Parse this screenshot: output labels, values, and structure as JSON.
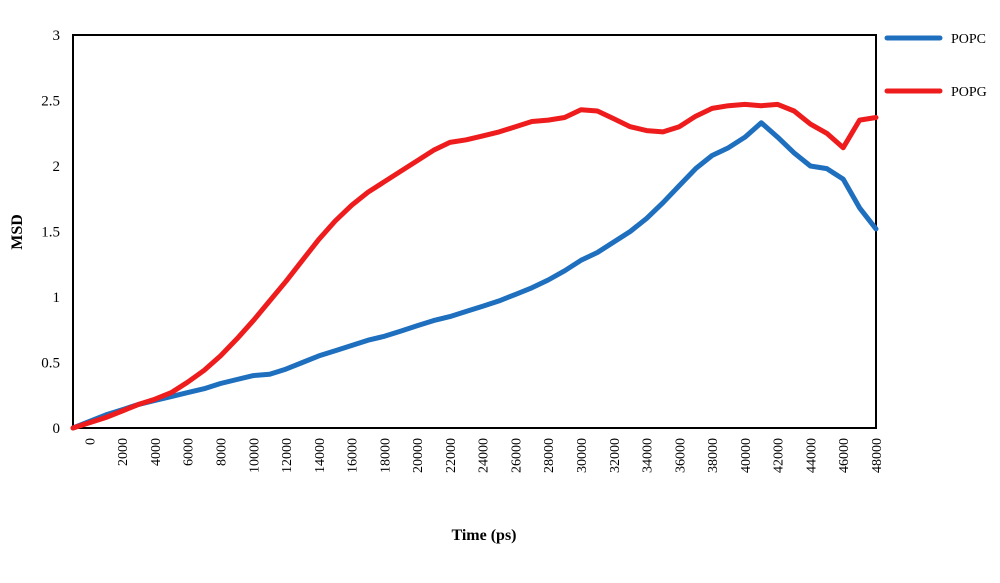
{
  "chart_data": {
    "type": "line",
    "title": "",
    "xlabel": "Time (ps)",
    "ylabel": "MSD",
    "xlim": [
      -1000,
      48000
    ],
    "ylim": [
      0,
      3
    ],
    "x_ticks": [
      0,
      2000,
      4000,
      6000,
      8000,
      10000,
      12000,
      14000,
      16000,
      18000,
      20000,
      22000,
      24000,
      26000,
      28000,
      30000,
      32000,
      34000,
      36000,
      38000,
      40000,
      42000,
      44000,
      46000,
      48000
    ],
    "y_ticks": [
      0,
      0.5,
      1,
      1.5,
      2,
      2.5,
      3
    ],
    "grid": false,
    "legend_position": "right, outside",
    "series": [
      {
        "name": "POPC",
        "color": "#1f6fbf",
        "points": [
          [
            -1000,
            0
          ],
          [
            0,
            0.05
          ],
          [
            1000,
            0.1
          ],
          [
            2000,
            0.14
          ],
          [
            3000,
            0.18
          ],
          [
            4000,
            0.21
          ],
          [
            5000,
            0.24
          ],
          [
            6000,
            0.27
          ],
          [
            7000,
            0.3
          ],
          [
            8000,
            0.34
          ],
          [
            9000,
            0.37
          ],
          [
            10000,
            0.4
          ],
          [
            11000,
            0.41
          ],
          [
            12000,
            0.45
          ],
          [
            13000,
            0.5
          ],
          [
            14000,
            0.55
          ],
          [
            15000,
            0.59
          ],
          [
            16000,
            0.63
          ],
          [
            17000,
            0.67
          ],
          [
            18000,
            0.7
          ],
          [
            19000,
            0.74
          ],
          [
            20000,
            0.78
          ],
          [
            21000,
            0.82
          ],
          [
            22000,
            0.85
          ],
          [
            23000,
            0.89
          ],
          [
            24000,
            0.93
          ],
          [
            25000,
            0.97
          ],
          [
            26000,
            1.02
          ],
          [
            27000,
            1.07
          ],
          [
            28000,
            1.13
          ],
          [
            29000,
            1.2
          ],
          [
            30000,
            1.28
          ],
          [
            31000,
            1.34
          ],
          [
            32000,
            1.42
          ],
          [
            33000,
            1.5
          ],
          [
            34000,
            1.6
          ],
          [
            35000,
            1.72
          ],
          [
            36000,
            1.85
          ],
          [
            37000,
            1.98
          ],
          [
            38000,
            2.08
          ],
          [
            39000,
            2.14
          ],
          [
            40000,
            2.22
          ],
          [
            41000,
            2.33
          ],
          [
            42000,
            2.22
          ],
          [
            43000,
            2.1
          ],
          [
            44000,
            2.0
          ],
          [
            45000,
            1.98
          ],
          [
            46000,
            1.9
          ],
          [
            47000,
            1.68
          ],
          [
            48000,
            1.52
          ]
        ]
      },
      {
        "name": "POPG",
        "color": "#ee1c1c",
        "points": [
          [
            -1000,
            0
          ],
          [
            0,
            0.04
          ],
          [
            1000,
            0.08
          ],
          [
            2000,
            0.13
          ],
          [
            3000,
            0.18
          ],
          [
            4000,
            0.22
          ],
          [
            5000,
            0.27
          ],
          [
            6000,
            0.35
          ],
          [
            7000,
            0.44
          ],
          [
            8000,
            0.55
          ],
          [
            9000,
            0.68
          ],
          [
            10000,
            0.82
          ],
          [
            11000,
            0.97
          ],
          [
            12000,
            1.12
          ],
          [
            13000,
            1.28
          ],
          [
            14000,
            1.44
          ],
          [
            15000,
            1.58
          ],
          [
            16000,
            1.7
          ],
          [
            17000,
            1.8
          ],
          [
            18000,
            1.88
          ],
          [
            19000,
            1.96
          ],
          [
            20000,
            2.04
          ],
          [
            21000,
            2.12
          ],
          [
            22000,
            2.18
          ],
          [
            23000,
            2.2
          ],
          [
            24000,
            2.23
          ],
          [
            25000,
            2.26
          ],
          [
            26000,
            2.3
          ],
          [
            27000,
            2.34
          ],
          [
            28000,
            2.35
          ],
          [
            29000,
            2.37
          ],
          [
            30000,
            2.43
          ],
          [
            31000,
            2.42
          ],
          [
            32000,
            2.36
          ],
          [
            33000,
            2.3
          ],
          [
            34000,
            2.27
          ],
          [
            35000,
            2.26
          ],
          [
            36000,
            2.3
          ],
          [
            37000,
            2.38
          ],
          [
            38000,
            2.44
          ],
          [
            39000,
            2.46
          ],
          [
            40000,
            2.47
          ],
          [
            41000,
            2.46
          ],
          [
            42000,
            2.47
          ],
          [
            43000,
            2.42
          ],
          [
            44000,
            2.32
          ],
          [
            45000,
            2.25
          ],
          [
            46000,
            2.14
          ],
          [
            47000,
            2.35
          ],
          [
            48000,
            2.37
          ]
        ]
      }
    ]
  }
}
